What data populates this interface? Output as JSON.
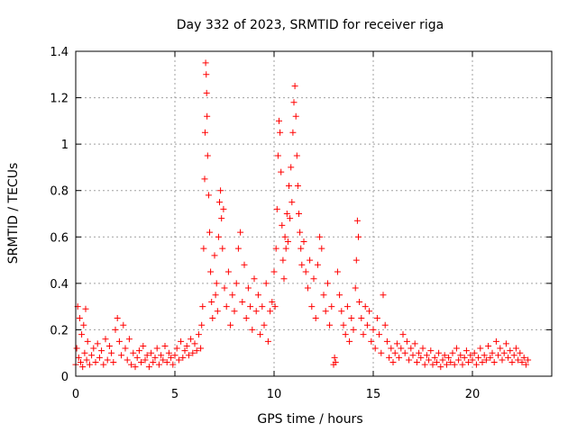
{
  "chart_data": {
    "type": "scatter",
    "title": "Day 332 of 2023, SRMTID for receiver riga",
    "xlabel": "GPS time / hours",
    "ylabel": "SRMTID / TECUs",
    "xlim": [
      0,
      24
    ],
    "ylim": [
      0,
      1.4
    ],
    "x_ticks": [
      0,
      5,
      10,
      15,
      20
    ],
    "y_ticks": [
      0,
      0.2,
      0.4,
      0.6,
      0.8,
      1,
      1.2,
      1.4
    ],
    "x_tick_labels": [
      "0",
      "5",
      "10",
      "15",
      "20"
    ],
    "y_tick_labels": [
      "0",
      "0.2",
      "0.4",
      "0.6",
      "0.8",
      "1",
      "1.2",
      "1.4"
    ],
    "grid": true,
    "marker": "+",
    "color": "#ff0000",
    "series": [
      {
        "name": "riga",
        "points": [
          [
            0.0,
            0.05
          ],
          [
            0.05,
            0.12
          ],
          [
            0.1,
            0.3
          ],
          [
            0.15,
            0.08
          ],
          [
            0.2,
            0.25
          ],
          [
            0.25,
            0.06
          ],
          [
            0.3,
            0.18
          ],
          [
            0.35,
            0.04
          ],
          [
            0.4,
            0.22
          ],
          [
            0.45,
            0.1
          ],
          [
            0.5,
            0.29
          ],
          [
            0.55,
            0.07
          ],
          [
            0.6,
            0.15
          ],
          [
            0.7,
            0.05
          ],
          [
            0.8,
            0.09
          ],
          [
            0.9,
            0.12
          ],
          [
            1.0,
            0.06
          ],
          [
            1.1,
            0.14
          ],
          [
            1.2,
            0.08
          ],
          [
            1.3,
            0.11
          ],
          [
            1.4,
            0.05
          ],
          [
            1.5,
            0.16
          ],
          [
            1.6,
            0.07
          ],
          [
            1.7,
            0.13
          ],
          [
            1.8,
            0.1
          ],
          [
            1.9,
            0.06
          ],
          [
            2.0,
            0.2
          ],
          [
            2.1,
            0.25
          ],
          [
            2.2,
            0.15
          ],
          [
            2.3,
            0.09
          ],
          [
            2.4,
            0.22
          ],
          [
            2.5,
            0.12
          ],
          [
            2.6,
            0.07
          ],
          [
            2.7,
            0.16
          ],
          [
            2.8,
            0.05
          ],
          [
            2.9,
            0.1
          ],
          [
            3.0,
            0.04
          ],
          [
            3.1,
            0.08
          ],
          [
            3.2,
            0.11
          ],
          [
            3.3,
            0.06
          ],
          [
            3.4,
            0.13
          ],
          [
            3.5,
            0.07
          ],
          [
            3.6,
            0.09
          ],
          [
            3.7,
            0.04
          ],
          [
            3.8,
            0.1
          ],
          [
            3.9,
            0.06
          ],
          [
            4.0,
            0.08
          ],
          [
            4.1,
            0.12
          ],
          [
            4.2,
            0.05
          ],
          [
            4.3,
            0.09
          ],
          [
            4.4,
            0.07
          ],
          [
            4.5,
            0.13
          ],
          [
            4.6,
            0.06
          ],
          [
            4.7,
            0.1
          ],
          [
            4.8,
            0.08
          ],
          [
            4.9,
            0.05
          ],
          [
            5.0,
            0.09
          ],
          [
            5.1,
            0.12
          ],
          [
            5.2,
            0.07
          ],
          [
            5.3,
            0.15
          ],
          [
            5.4,
            0.08
          ],
          [
            5.5,
            0.11
          ],
          [
            5.6,
            0.13
          ],
          [
            5.7,
            0.09
          ],
          [
            5.8,
            0.16
          ],
          [
            5.9,
            0.1
          ],
          [
            6.0,
            0.14
          ],
          [
            6.1,
            0.11
          ],
          [
            6.2,
            0.18
          ],
          [
            6.3,
            0.12
          ],
          [
            6.35,
            0.22
          ],
          [
            6.4,
            0.3
          ],
          [
            6.45,
            0.55
          ],
          [
            6.5,
            0.85
          ],
          [
            6.52,
            1.05
          ],
          [
            6.55,
            1.35
          ],
          [
            6.58,
            1.3
          ],
          [
            6.6,
            1.22
          ],
          [
            6.62,
            1.12
          ],
          [
            6.65,
            0.95
          ],
          [
            6.7,
            0.78
          ],
          [
            6.75,
            0.62
          ],
          [
            6.8,
            0.45
          ],
          [
            6.85,
            0.32
          ],
          [
            6.9,
            0.25
          ],
          [
            7.0,
            0.52
          ],
          [
            7.05,
            0.35
          ],
          [
            7.1,
            0.4
          ],
          [
            7.15,
            0.28
          ],
          [
            7.2,
            0.6
          ],
          [
            7.25,
            0.75
          ],
          [
            7.3,
            0.8
          ],
          [
            7.35,
            0.68
          ],
          [
            7.4,
            0.55
          ],
          [
            7.45,
            0.72
          ],
          [
            7.5,
            0.38
          ],
          [
            7.6,
            0.3
          ],
          [
            7.7,
            0.45
          ],
          [
            7.8,
            0.22
          ],
          [
            7.9,
            0.35
          ],
          [
            8.0,
            0.28
          ],
          [
            8.1,
            0.4
          ],
          [
            8.2,
            0.55
          ],
          [
            8.3,
            0.62
          ],
          [
            8.4,
            0.32
          ],
          [
            8.5,
            0.48
          ],
          [
            8.6,
            0.25
          ],
          [
            8.7,
            0.38
          ],
          [
            8.8,
            0.3
          ],
          [
            8.9,
            0.2
          ],
          [
            9.0,
            0.42
          ],
          [
            9.1,
            0.28
          ],
          [
            9.2,
            0.35
          ],
          [
            9.3,
            0.18
          ],
          [
            9.4,
            0.3
          ],
          [
            9.5,
            0.22
          ],
          [
            9.6,
            0.4
          ],
          [
            9.7,
            0.15
          ],
          [
            9.8,
            0.28
          ],
          [
            9.9,
            0.32
          ],
          [
            10.0,
            0.45
          ],
          [
            10.05,
            0.3
          ],
          [
            10.1,
            0.55
          ],
          [
            10.15,
            0.72
          ],
          [
            10.2,
            0.95
          ],
          [
            10.25,
            1.1
          ],
          [
            10.3,
            1.05
          ],
          [
            10.35,
            0.88
          ],
          [
            10.4,
            0.65
          ],
          [
            10.45,
            0.5
          ],
          [
            10.5,
            0.42
          ],
          [
            10.55,
            0.6
          ],
          [
            10.6,
            0.55
          ],
          [
            10.65,
            0.7
          ],
          [
            10.7,
            0.58
          ],
          [
            10.75,
            0.82
          ],
          [
            10.8,
            0.68
          ],
          [
            10.85,
            0.9
          ],
          [
            10.9,
            0.75
          ],
          [
            10.95,
            1.05
          ],
          [
            11.0,
            1.18
          ],
          [
            11.05,
            1.25
          ],
          [
            11.1,
            1.12
          ],
          [
            11.15,
            0.95
          ],
          [
            11.2,
            0.82
          ],
          [
            11.25,
            0.7
          ],
          [
            11.3,
            0.62
          ],
          [
            11.35,
            0.55
          ],
          [
            11.4,
            0.48
          ],
          [
            11.5,
            0.58
          ],
          [
            11.6,
            0.45
          ],
          [
            11.7,
            0.38
          ],
          [
            11.8,
            0.5
          ],
          [
            11.9,
            0.3
          ],
          [
            12.0,
            0.42
          ],
          [
            12.1,
            0.25
          ],
          [
            12.2,
            0.48
          ],
          [
            12.3,
            0.6
          ],
          [
            12.4,
            0.55
          ],
          [
            12.5,
            0.35
          ],
          [
            12.6,
            0.28
          ],
          [
            12.7,
            0.4
          ],
          [
            12.8,
            0.22
          ],
          [
            12.9,
            0.3
          ],
          [
            13.0,
            0.05
          ],
          [
            13.05,
            0.08
          ],
          [
            13.1,
            0.06
          ],
          [
            13.2,
            0.45
          ],
          [
            13.3,
            0.35
          ],
          [
            13.4,
            0.28
          ],
          [
            13.5,
            0.22
          ],
          [
            13.6,
            0.18
          ],
          [
            13.7,
            0.3
          ],
          [
            13.8,
            0.15
          ],
          [
            13.9,
            0.25
          ],
          [
            14.0,
            0.2
          ],
          [
            14.1,
            0.38
          ],
          [
            14.15,
            0.5
          ],
          [
            14.2,
            0.67
          ],
          [
            14.25,
            0.6
          ],
          [
            14.3,
            0.32
          ],
          [
            14.4,
            0.25
          ],
          [
            14.5,
            0.18
          ],
          [
            14.6,
            0.3
          ],
          [
            14.7,
            0.22
          ],
          [
            14.8,
            0.28
          ],
          [
            14.9,
            0.15
          ],
          [
            15.0,
            0.2
          ],
          [
            15.1,
            0.12
          ],
          [
            15.2,
            0.25
          ],
          [
            15.3,
            0.18
          ],
          [
            15.4,
            0.1
          ],
          [
            15.5,
            0.35
          ],
          [
            15.6,
            0.22
          ],
          [
            15.7,
            0.15
          ],
          [
            15.8,
            0.08
          ],
          [
            15.9,
            0.12
          ],
          [
            16.0,
            0.06
          ],
          [
            16.1,
            0.1
          ],
          [
            16.2,
            0.14
          ],
          [
            16.3,
            0.08
          ],
          [
            16.4,
            0.12
          ],
          [
            16.5,
            0.18
          ],
          [
            16.6,
            0.1
          ],
          [
            16.7,
            0.15
          ],
          [
            16.8,
            0.07
          ],
          [
            16.9,
            0.12
          ],
          [
            17.0,
            0.09
          ],
          [
            17.1,
            0.14
          ],
          [
            17.2,
            0.06
          ],
          [
            17.3,
            0.1
          ],
          [
            17.4,
            0.08
          ],
          [
            17.5,
            0.12
          ],
          [
            17.6,
            0.05
          ],
          [
            17.7,
            0.09
          ],
          [
            17.8,
            0.07
          ],
          [
            17.9,
            0.11
          ],
          [
            18.0,
            0.05
          ],
          [
            18.1,
            0.08
          ],
          [
            18.2,
            0.06
          ],
          [
            18.3,
            0.1
          ],
          [
            18.4,
            0.04
          ],
          [
            18.5,
            0.07
          ],
          [
            18.6,
            0.09
          ],
          [
            18.7,
            0.05
          ],
          [
            18.8,
            0.08
          ],
          [
            18.9,
            0.06
          ],
          [
            19.0,
            0.1
          ],
          [
            19.1,
            0.05
          ],
          [
            19.2,
            0.12
          ],
          [
            19.3,
            0.07
          ],
          [
            19.4,
            0.09
          ],
          [
            19.5,
            0.05
          ],
          [
            19.6,
            0.08
          ],
          [
            19.7,
            0.11
          ],
          [
            19.8,
            0.06
          ],
          [
            19.9,
            0.09
          ],
          [
            20.0,
            0.07
          ],
          [
            20.1,
            0.1
          ],
          [
            20.2,
            0.05
          ],
          [
            20.3,
            0.08
          ],
          [
            20.4,
            0.12
          ],
          [
            20.5,
            0.06
          ],
          [
            20.6,
            0.09
          ],
          [
            20.7,
            0.07
          ],
          [
            20.8,
            0.13
          ],
          [
            20.9,
            0.08
          ],
          [
            21.0,
            0.1
          ],
          [
            21.1,
            0.06
          ],
          [
            21.2,
            0.15
          ],
          [
            21.3,
            0.09
          ],
          [
            21.4,
            0.12
          ],
          [
            21.5,
            0.07
          ],
          [
            21.6,
            0.1
          ],
          [
            21.7,
            0.14
          ],
          [
            21.8,
            0.08
          ],
          [
            21.9,
            0.11
          ],
          [
            22.0,
            0.06
          ],
          [
            22.1,
            0.09
          ],
          [
            22.2,
            0.12
          ],
          [
            22.3,
            0.07
          ],
          [
            22.4,
            0.1
          ],
          [
            22.5,
            0.06
          ],
          [
            22.6,
            0.08
          ],
          [
            22.7,
            0.05
          ],
          [
            22.8,
            0.07
          ]
        ]
      }
    ]
  }
}
